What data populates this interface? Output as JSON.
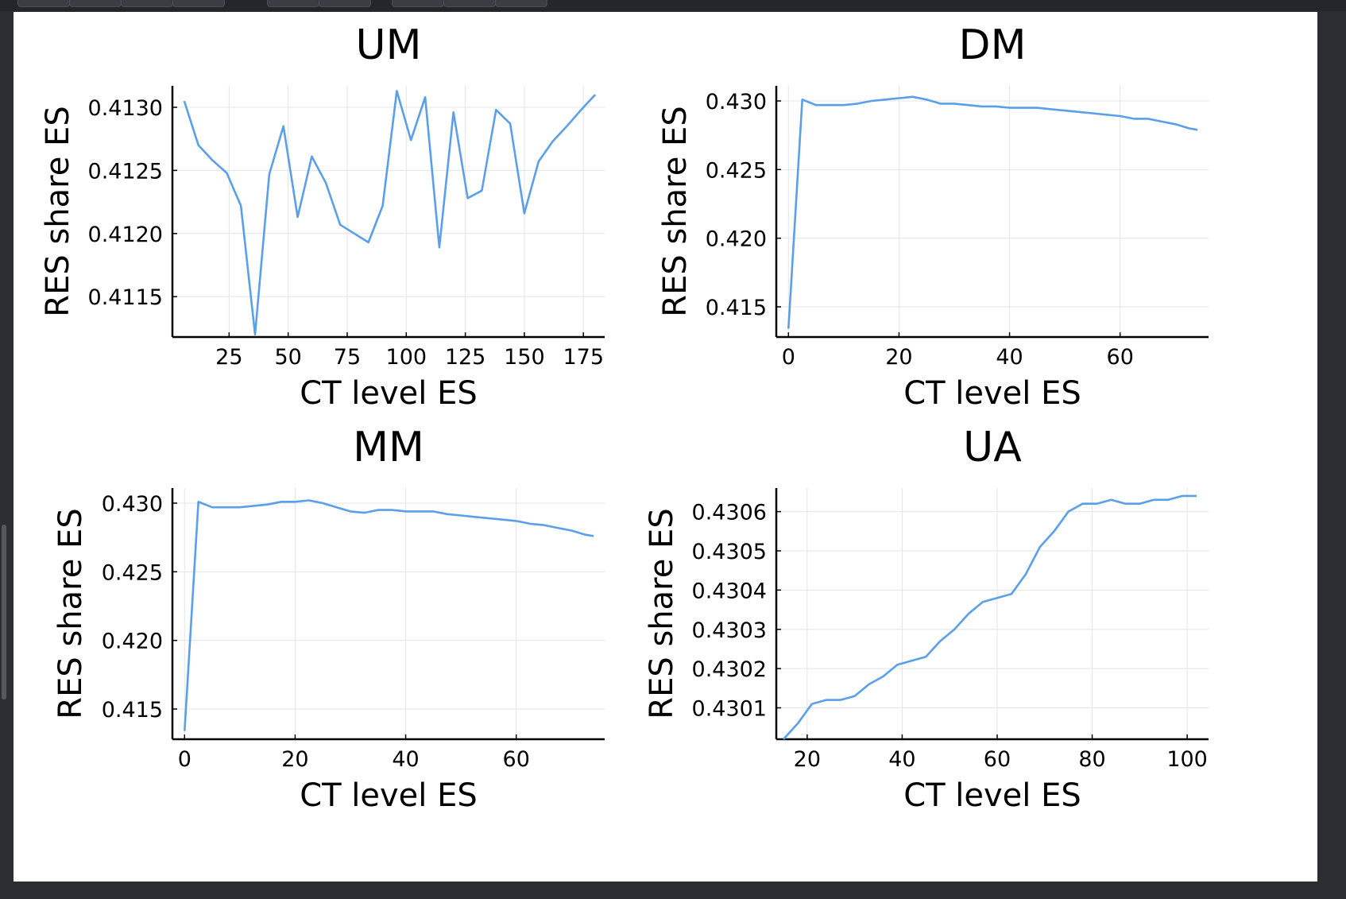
{
  "colors": {
    "series": "#5b9fe9"
  },
  "chart_data": [
    {
      "type": "line",
      "title": "UM",
      "xlabel": "CT level ES",
      "ylabel": "RES share ES",
      "xlim": [
        1,
        184
      ],
      "ylim": [
        0.41118,
        0.41317
      ],
      "xticks": [
        25,
        50,
        75,
        100,
        125,
        150,
        175
      ],
      "xtick_labels": [
        "25",
        "50",
        "75",
        "100",
        "125",
        "150",
        "175"
      ],
      "yticks": [
        0.4115,
        0.412,
        0.4125,
        0.413
      ],
      "ytick_labels": [
        "0.4115",
        "0.4120",
        "0.4125",
        "0.4130"
      ],
      "grid": true,
      "series": [
        {
          "x": [
            6,
            12,
            18,
            24,
            30,
            36,
            42,
            48,
            54,
            60,
            66,
            72,
            78,
            84,
            90,
            96,
            102,
            108,
            114,
            120,
            126,
            132,
            138,
            144,
            150,
            156,
            162,
            168,
            174,
            180
          ],
          "y": [
            0.41305,
            0.4127,
            0.41258,
            0.41248,
            0.41222,
            0.4112,
            0.41247,
            0.41285,
            0.41213,
            0.41261,
            0.4124,
            0.41207,
            0.412,
            0.41193,
            0.41222,
            0.41313,
            0.41274,
            0.41308,
            0.41189,
            0.41296,
            0.41228,
            0.41234,
            0.41298,
            0.41287,
            0.41216,
            0.41257,
            0.41273,
            0.41285,
            0.41298,
            0.4131
          ]
        }
      ]
    },
    {
      "type": "line",
      "title": "DM",
      "xlabel": "CT level ES",
      "ylabel": "RES share ES",
      "xlim": [
        -2.2,
        76
      ],
      "ylim": [
        0.4128,
        0.4311
      ],
      "xticks": [
        0,
        20,
        40,
        60
      ],
      "xtick_labels": [
        "0",
        "20",
        "40",
        "60"
      ],
      "yticks": [
        0.415,
        0.42,
        0.425,
        0.43
      ],
      "ytick_labels": [
        "0.415",
        "0.420",
        "0.425",
        "0.430"
      ],
      "grid": true,
      "series": [
        {
          "x": [
            0,
            2.5,
            5,
            7.5,
            10,
            12.5,
            15,
            17.5,
            20,
            22.5,
            25,
            27.5,
            30,
            32.5,
            35,
            37.5,
            40,
            42.5,
            45,
            47.5,
            50,
            52.5,
            55,
            57.5,
            60,
            62.5,
            65,
            67.5,
            70,
            72.5,
            74
          ],
          "y": [
            0.4134,
            0.4301,
            0.4297,
            0.4297,
            0.4297,
            0.4298,
            0.43,
            0.4301,
            0.4302,
            0.4303,
            0.4301,
            0.4298,
            0.4298,
            0.4297,
            0.4296,
            0.4296,
            0.4295,
            0.4295,
            0.4295,
            0.4294,
            0.4293,
            0.4292,
            0.4291,
            0.429,
            0.4289,
            0.4287,
            0.4287,
            0.4285,
            0.4283,
            0.428,
            0.4279
          ]
        }
      ]
    },
    {
      "type": "line",
      "title": "MM",
      "xlabel": "CT level ES",
      "ylabel": "RES share ES",
      "xlim": [
        -2.2,
        76
      ],
      "ylim": [
        0.4128,
        0.4311
      ],
      "xticks": [
        0,
        20,
        40,
        60
      ],
      "xtick_labels": [
        "0",
        "20",
        "40",
        "60"
      ],
      "yticks": [
        0.415,
        0.42,
        0.425,
        0.43
      ],
      "ytick_labels": [
        "0.415",
        "0.420",
        "0.425",
        "0.430"
      ],
      "grid": true,
      "series": [
        {
          "x": [
            0,
            2.5,
            5,
            7.5,
            10,
            12.5,
            15,
            17.5,
            20,
            22.5,
            25,
            27.5,
            30,
            32.5,
            35,
            37.5,
            40,
            42.5,
            45,
            47.5,
            50,
            52.5,
            55,
            57.5,
            60,
            62.5,
            65,
            67.5,
            70,
            72.5,
            74
          ],
          "y": [
            0.4134,
            0.4301,
            0.4297,
            0.4297,
            0.4297,
            0.4298,
            0.4299,
            0.4301,
            0.4301,
            0.4302,
            0.43,
            0.4297,
            0.4294,
            0.4293,
            0.4295,
            0.4295,
            0.4294,
            0.4294,
            0.4294,
            0.4292,
            0.4291,
            0.429,
            0.4289,
            0.4288,
            0.4287,
            0.4285,
            0.4284,
            0.4282,
            0.428,
            0.4277,
            0.4276
          ]
        }
      ]
    },
    {
      "type": "line",
      "title": "UA",
      "xlabel": "CT level ES",
      "ylabel": "RES share ES",
      "xlim": [
        13.5,
        104.5
      ],
      "ylim": [
        0.43002,
        0.43066
      ],
      "xticks": [
        20,
        40,
        60,
        80,
        100
      ],
      "xtick_labels": [
        "20",
        "40",
        "60",
        "80",
        "100"
      ],
      "yticks": [
        0.4301,
        0.4302,
        0.4303,
        0.4304,
        0.4305,
        0.4306
      ],
      "ytick_labels": [
        "0.4301",
        "0.4302",
        "0.4303",
        "0.4304",
        "0.4305",
        "0.4306"
      ],
      "grid": true,
      "series": [
        {
          "x": [
            15,
            18,
            21,
            24,
            27,
            30,
            33,
            36,
            39,
            42,
            45,
            48,
            51,
            54,
            57,
            60,
            63,
            66,
            69,
            72,
            75,
            78,
            81,
            84,
            87,
            90,
            93,
            96,
            99,
            102
          ],
          "y": [
            0.43002,
            0.43006,
            0.43011,
            0.43012,
            0.43012,
            0.43013,
            0.43016,
            0.43018,
            0.43021,
            0.43022,
            0.43023,
            0.43027,
            0.4303,
            0.43034,
            0.43037,
            0.43038,
            0.43039,
            0.43044,
            0.43051,
            0.43055,
            0.4306,
            0.43062,
            0.43062,
            0.43063,
            0.43062,
            0.43062,
            0.43063,
            0.43063,
            0.43064,
            0.43064
          ]
        }
      ]
    }
  ]
}
